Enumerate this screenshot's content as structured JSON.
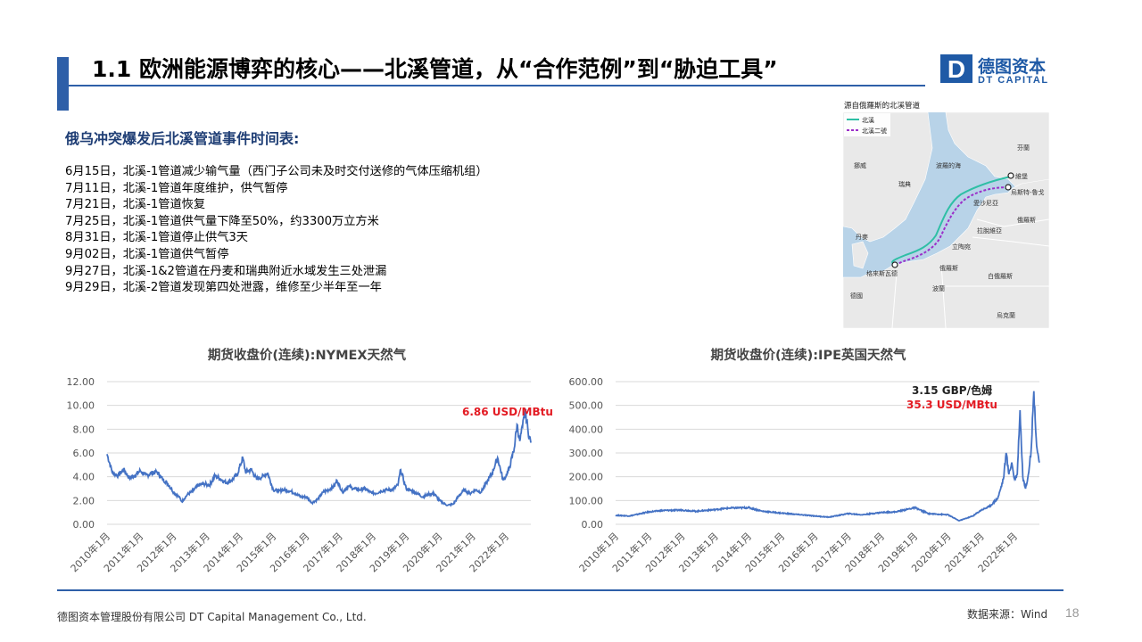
{
  "header": {
    "title": "1.1 欧洲能源博弈的核心——北溪管道，从“合作范例”到“胁迫工具”",
    "logo_letter": "D",
    "logo_cn": "德图资本",
    "logo_en": "DT CAPITAL"
  },
  "timeline": {
    "subtitle": "俄乌冲突爆发后北溪管道事件时间表:",
    "events": [
      "6月15日，北溪-1管道减少输气量（西门子公司未及时交付送修的气体压缩机组）",
      "7月11日，北溪-1管道年度维护，供气暂停",
      "7月21日，北溪-1管道恢复",
      "7月25日，北溪-1管道供气量下降至50%，约3300万立方米",
      "8月31日，北溪-1管道停止供气3天",
      "9月02日，北溪-1管道供气暂停",
      "9月27日，北溪-1&2管道在丹麦和瑞典附近水域发生三处泄漏",
      "9月29日，北溪-2管道发现第四处泄露，维修至少半年至一年"
    ]
  },
  "map": {
    "title": "源自俄羅斯的北溪管道",
    "legend": [
      {
        "label": "北溪",
        "color": "#2ebfa5"
      },
      {
        "label": "北溪二號",
        "color": "#9b2fc9"
      }
    ],
    "labels": {
      "finland": "芬蘭",
      "norway": "挪威",
      "sweden": "瑞典",
      "baltic": "波羅的海",
      "vyborg": "維堡",
      "ustluga": "烏斯特-魯戈",
      "estonia": "愛沙尼亞",
      "latvia": "拉脫維亞",
      "russia": "俄羅斯",
      "denmark": "丹麥",
      "lithuania": "立陶宛",
      "russia2": "俄羅斯",
      "greifswald": "格來斯瓦德",
      "germany": "德國",
      "poland": "波蘭",
      "belarus": "白俄羅斯",
      "ukraine": "烏克蘭"
    },
    "colors": {
      "sea": "#b8d3e8",
      "land": "#e9e9e9",
      "nord1": "#2ebfa5",
      "nord2": "#9b2fc9"
    }
  },
  "chart_data": [
    {
      "type": "line",
      "title": "期货收盘价(连续):NYMEX天然气",
      "ylim": [
        0,
        12
      ],
      "yticks": [
        "0.00",
        "2.00",
        "4.00",
        "6.00",
        "8.00",
        "10.00",
        "12.00"
      ],
      "xticks": [
        "2010年1月",
        "2011年1月",
        "2012年1月",
        "2013年1月",
        "2014年1月",
        "2015年1月",
        "2016年1月",
        "2017年1月",
        "2018年1月",
        "2019年1月",
        "2020年1月",
        "2021年1月",
        "2022年1月"
      ],
      "xrange": [
        "2010-01",
        "2022-10"
      ],
      "annotation": "6.86 USD/MBtu",
      "annotation_color": "#e31b23",
      "line_color": "#4472c4",
      "series": [
        {
          "x": [
            "2010-01",
            "2010-03",
            "2010-05",
            "2010-07",
            "2010-09",
            "2010-11",
            "2011-01",
            "2011-03",
            "2011-05",
            "2011-07",
            "2011-09",
            "2011-11",
            "2012-01",
            "2012-03",
            "2012-04",
            "2012-06",
            "2012-08",
            "2012-10",
            "2012-12",
            "2013-02",
            "2013-04",
            "2013-06",
            "2013-08",
            "2013-10",
            "2013-12",
            "2014-02",
            "2014-03",
            "2014-05",
            "2014-07",
            "2014-09",
            "2014-11",
            "2015-01",
            "2015-03",
            "2015-05",
            "2015-07",
            "2015-09",
            "2015-11",
            "2016-01",
            "2016-03",
            "2016-05",
            "2016-07",
            "2016-09",
            "2016-11",
            "2016-12",
            "2017-02",
            "2017-04",
            "2017-06",
            "2017-08",
            "2017-10",
            "2017-12",
            "2018-02",
            "2018-04",
            "2018-06",
            "2018-08",
            "2018-10",
            "2018-11",
            "2019-01",
            "2019-03",
            "2019-05",
            "2019-07",
            "2019-09",
            "2019-11",
            "2020-01",
            "2020-03",
            "2020-04",
            "2020-06",
            "2020-08",
            "2020-10",
            "2020-12",
            "2021-02",
            "2021-04",
            "2021-06",
            "2021-08",
            "2021-10",
            "2021-12",
            "2022-02",
            "2022-04",
            "2022-05",
            "2022-06",
            "2022-07",
            "2022-08",
            "2022-09",
            "2022-10"
          ],
          "y": [
            5.9,
            4.3,
            4.1,
            4.6,
            3.9,
            4.1,
            4.5,
            4.1,
            4.3,
            4.4,
            3.8,
            3.4,
            2.7,
            2.3,
            1.9,
            2.5,
            2.8,
            3.3,
            3.4,
            3.3,
            4.1,
            3.8,
            3.5,
            3.7,
            4.2,
            5.6,
            4.4,
            4.6,
            3.8,
            4.0,
            4.3,
            2.9,
            2.8,
            2.9,
            2.8,
            2.6,
            2.3,
            2.3,
            1.8,
            2.1,
            2.7,
            2.9,
            3.2,
            3.7,
            2.7,
            3.2,
            3.0,
            2.9,
            3.0,
            2.7,
            2.6,
            2.8,
            2.9,
            2.9,
            3.3,
            4.6,
            3.0,
            2.8,
            2.6,
            2.3,
            2.5,
            2.6,
            2.0,
            1.7,
            1.6,
            1.7,
            2.4,
            2.9,
            2.6,
            2.9,
            2.7,
            3.5,
            4.3,
            5.6,
            3.7,
            4.5,
            6.4,
            8.4,
            7.0,
            8.2,
            9.6,
            7.8,
            6.86
          ]
        }
      ]
    },
    {
      "type": "line",
      "title": "期货收盘价(连续):IPE英国天然气",
      "ylim": [
        0,
        600
      ],
      "yticks": [
        "0.00",
        "100.00",
        "200.00",
        "300.00",
        "400.00",
        "500.00",
        "600.00"
      ],
      "xticks": [
        "2010年1月",
        "2011年1月",
        "2012年1月",
        "2013年1月",
        "2014年1月",
        "2015年1月",
        "2016年1月",
        "2017年1月",
        "2018年1月",
        "2019年1月",
        "2020年1月",
        "2021年1月",
        "2022年1月"
      ],
      "xrange": [
        "2010-01",
        "2022-10"
      ],
      "annotation": "3.15 GBP/色姆",
      "annotation_color": "#222222",
      "annotation2": "35.3 USD/MBtu",
      "annotation2_color": "#e31b23",
      "line_color": "#4472c4",
      "series": [
        {
          "x": [
            "2010-01",
            "2010-06",
            "2011-01",
            "2011-06",
            "2012-01",
            "2012-06",
            "2013-01",
            "2013-06",
            "2014-01",
            "2014-06",
            "2015-01",
            "2015-06",
            "2016-01",
            "2016-06",
            "2017-01",
            "2017-06",
            "2018-01",
            "2018-06",
            "2019-01",
            "2019-06",
            "2020-01",
            "2020-05",
            "2020-10",
            "2021-01",
            "2021-04",
            "2021-07",
            "2021-09",
            "2021-10",
            "2021-11",
            "2021-12",
            "2022-01",
            "2022-02",
            "2022-03",
            "2022-04",
            "2022-05",
            "2022-06",
            "2022-07",
            "2022-08",
            "2022-09",
            "2022-10"
          ],
          "y": [
            38,
            35,
            52,
            58,
            60,
            55,
            62,
            68,
            70,
            55,
            47,
            42,
            35,
            30,
            45,
            40,
            50,
            52,
            70,
            45,
            40,
            15,
            35,
            60,
            75,
            110,
            190,
            300,
            210,
            260,
            190,
            210,
            480,
            200,
            150,
            210,
            310,
            560,
            330,
            260
          ]
        }
      ]
    }
  ],
  "footer": {
    "company": "德图资本管理股份有限公司  DT Capital Management  Co., Ltd.",
    "source": "数据来源：Wind",
    "page": "18"
  }
}
